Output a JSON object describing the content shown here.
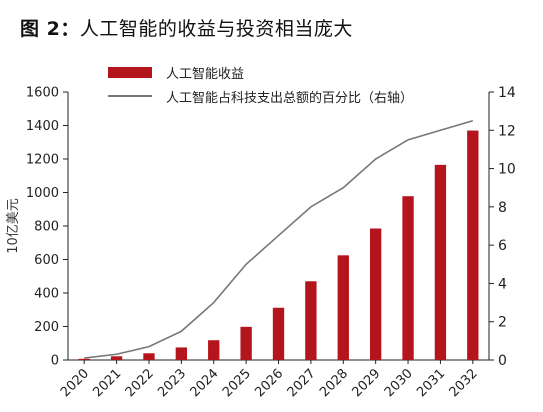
{
  "title": {
    "prefix": "图 2：",
    "main": "人工智能的收益与投资相当庞大"
  },
  "colors": {
    "bar": "#b4141b",
    "line": "#777777",
    "axis": "#222222"
  },
  "chart_data": {
    "type": "bar",
    "title": "图 2：人工智能的收益与投资相当庞大",
    "categories": [
      "2020",
      "2021",
      "2022",
      "2023",
      "2024",
      "2025",
      "2026",
      "2027",
      "2028",
      "2029",
      "2030",
      "2031",
      "2032"
    ],
    "series": [
      {
        "name": "人工智能收益",
        "type": "bar",
        "axis": "left",
        "values": [
          7,
          22,
          40,
          75,
          118,
          198,
          312,
          470,
          625,
          785,
          978,
          1165,
          1370
        ]
      },
      {
        "name": "人工智能占科技支出总额的百分比（右轴）",
        "type": "line",
        "axis": "right",
        "values": [
          0.1,
          0.3,
          0.7,
          1.5,
          3.0,
          5.0,
          6.5,
          8.0,
          9.0,
          10.5,
          11.5,
          12.0,
          12.5
        ]
      }
    ],
    "ylabel": "10亿美元",
    "ylabel_right": "",
    "xlabel": "",
    "ylim": [
      0,
      1600
    ],
    "yticks": [
      0,
      200,
      400,
      600,
      800,
      1000,
      1200,
      1400,
      1600
    ],
    "ylim_right": [
      0,
      14
    ],
    "yticks_right": [
      0,
      2,
      4,
      6,
      8,
      10,
      12,
      14
    ],
    "grid": false,
    "legend_position": "top-left"
  }
}
